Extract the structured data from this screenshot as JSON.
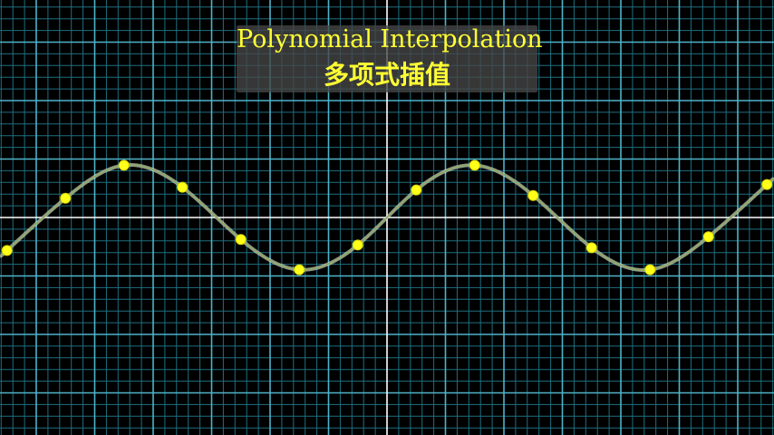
{
  "chart_data": {
    "type": "line",
    "title": "Polynomial Interpolation",
    "subtitle": "多项式插值",
    "xlabel": "",
    "ylabel": "",
    "grid": true,
    "x": [
      -6.5,
      -5.5,
      -4.5,
      -3.5,
      -2.5,
      -1.5,
      -0.5,
      0.5,
      1.5,
      2.5,
      3.5,
      4.5,
      5.5,
      6.5
    ],
    "y": [
      -0.6,
      0.35,
      0.95,
      0.55,
      -0.4,
      -0.95,
      -0.5,
      0.5,
      0.95,
      0.4,
      -0.55,
      -0.95,
      -0.35,
      0.6
    ],
    "xlim": [
      -6.6,
      6.6
    ],
    "ylim": [
      -3.7,
      3.7
    ],
    "colors": {
      "background": "#000000",
      "grid_major": "#4fb3c9",
      "grid_minor": "#1f6f80",
      "axes": "#ffffff",
      "curve": "#8fa86a",
      "points": "#ffff1a"
    }
  }
}
